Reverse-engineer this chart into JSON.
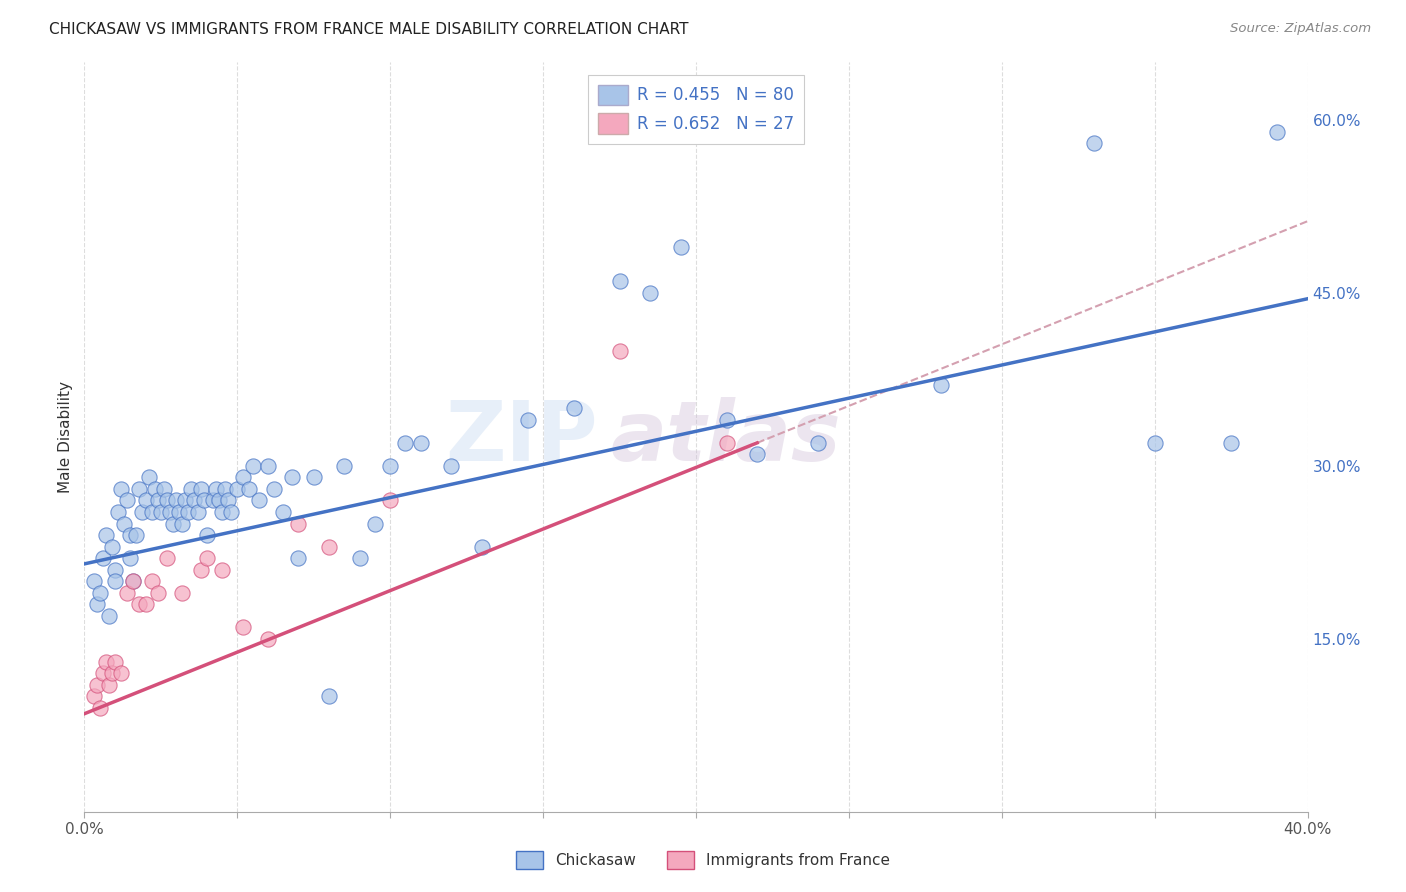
{
  "title": "CHICKASAW VS IMMIGRANTS FROM FRANCE MALE DISABILITY CORRELATION CHART",
  "source": "Source: ZipAtlas.com",
  "ylabel": "Male Disability",
  "x_min": 0.0,
  "x_max": 0.4,
  "y_min": 0.0,
  "y_max": 0.65,
  "y_ticks_right": [
    0.15,
    0.3,
    0.45,
    0.6
  ],
  "y_tick_labels_right": [
    "15.0%",
    "30.0%",
    "45.0%",
    "60.0%"
  ],
  "watermark": "ZIPatlas",
  "chickasaw_color": "#a8c4e8",
  "france_color": "#f4a8be",
  "trend_blue": "#4472c4",
  "trend_pink": "#d4507a",
  "trend_dashed_color": "#d4a0b0",
  "R_chickasaw": 0.455,
  "N_chickasaw": 80,
  "R_france": 0.652,
  "N_france": 27,
  "chickasaw_x": [
    0.003,
    0.004,
    0.005,
    0.006,
    0.007,
    0.008,
    0.009,
    0.01,
    0.01,
    0.011,
    0.012,
    0.013,
    0.014,
    0.015,
    0.015,
    0.016,
    0.017,
    0.018,
    0.019,
    0.02,
    0.021,
    0.022,
    0.023,
    0.024,
    0.025,
    0.026,
    0.027,
    0.028,
    0.029,
    0.03,
    0.031,
    0.032,
    0.033,
    0.034,
    0.035,
    0.036,
    0.037,
    0.038,
    0.039,
    0.04,
    0.042,
    0.043,
    0.044,
    0.045,
    0.046,
    0.047,
    0.048,
    0.05,
    0.052,
    0.054,
    0.055,
    0.057,
    0.06,
    0.062,
    0.065,
    0.068,
    0.07,
    0.075,
    0.08,
    0.085,
    0.09,
    0.095,
    0.1,
    0.105,
    0.11,
    0.12,
    0.13,
    0.145,
    0.16,
    0.175,
    0.185,
    0.195,
    0.21,
    0.22,
    0.24,
    0.28,
    0.33,
    0.35,
    0.375,
    0.39
  ],
  "chickasaw_y": [
    0.2,
    0.18,
    0.19,
    0.22,
    0.24,
    0.17,
    0.23,
    0.21,
    0.2,
    0.26,
    0.28,
    0.25,
    0.27,
    0.24,
    0.22,
    0.2,
    0.24,
    0.28,
    0.26,
    0.27,
    0.29,
    0.26,
    0.28,
    0.27,
    0.26,
    0.28,
    0.27,
    0.26,
    0.25,
    0.27,
    0.26,
    0.25,
    0.27,
    0.26,
    0.28,
    0.27,
    0.26,
    0.28,
    0.27,
    0.24,
    0.27,
    0.28,
    0.27,
    0.26,
    0.28,
    0.27,
    0.26,
    0.28,
    0.29,
    0.28,
    0.3,
    0.27,
    0.3,
    0.28,
    0.26,
    0.29,
    0.22,
    0.29,
    0.1,
    0.3,
    0.22,
    0.25,
    0.3,
    0.32,
    0.32,
    0.3,
    0.23,
    0.34,
    0.35,
    0.46,
    0.45,
    0.49,
    0.34,
    0.31,
    0.32,
    0.37,
    0.58,
    0.32,
    0.32,
    0.59
  ],
  "france_x": [
    0.003,
    0.004,
    0.005,
    0.006,
    0.007,
    0.008,
    0.009,
    0.01,
    0.012,
    0.014,
    0.016,
    0.018,
    0.02,
    0.022,
    0.024,
    0.027,
    0.032,
    0.038,
    0.04,
    0.045,
    0.052,
    0.06,
    0.07,
    0.08,
    0.1,
    0.175,
    0.21
  ],
  "france_y": [
    0.1,
    0.11,
    0.09,
    0.12,
    0.13,
    0.11,
    0.12,
    0.13,
    0.12,
    0.19,
    0.2,
    0.18,
    0.18,
    0.2,
    0.19,
    0.22,
    0.19,
    0.21,
    0.22,
    0.21,
    0.16,
    0.15,
    0.25,
    0.23,
    0.27,
    0.4,
    0.32
  ],
  "legend_label_chickasaw": "Chickasaw",
  "legend_label_france": "Immigrants from France",
  "background_color": "#ffffff",
  "grid_color": "#dddddd"
}
